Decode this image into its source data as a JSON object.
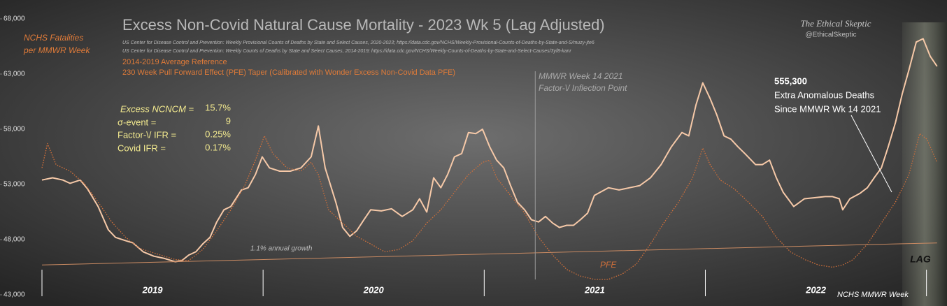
{
  "chart_data": {
    "type": "line",
    "title": "Excess Non-Covid Natural Cause Mortality - 2023 Wk 5 (Lag Adjusted)",
    "sources": [
      "US Center for Disease Control and Prevention: Weekly  Provisional Counts of Deaths by State and Select Causes, 2020-2023; https://data.cdc.gov/NCHS/Weekly-Provisional-Counts-of-Deaths-by-State-and-S/muzy-jte6",
      "US Center for Disease Control and Prevention: Weekly  Counts of Deaths by State and Select Causes, 2014-2019; https://data.cdc.gov/NCHS/Weekly-Counts-of-Deaths-by-State-and-Select-Causes/3yf8-kanr"
    ],
    "brand": "The Ethical Skeptic",
    "handle": "@EthicalSkeptic",
    "y_label": [
      "NCHS Fatalities",
      "per MMWR Week"
    ],
    "x_label": "NCHS MMWR Week",
    "ylim": [
      43000,
      68000
    ],
    "yticks": [
      {
        "value": 43000,
        "label": "43,000"
      },
      {
        "value": 48000,
        "label": "48,000"
      },
      {
        "value": 53000,
        "label": "53,000"
      },
      {
        "value": 58000,
        "label": "58,000"
      },
      {
        "value": 63000,
        "label": "63,000"
      },
      {
        "value": 68000,
        "label": "68,000"
      }
    ],
    "xlim": [
      0,
      212
    ],
    "xticks": [
      {
        "value": 26,
        "label": "2019"
      },
      {
        "value": 78,
        "label": "2020"
      },
      {
        "value": 130,
        "label": "2021"
      },
      {
        "value": 182,
        "label": "2022"
      }
    ],
    "stats": [
      {
        "label": "Excess NCNCM =",
        "value": "15.7%"
      },
      {
        "label": "σ-event =",
        "value": "9"
      },
      {
        "label": "Factor-\\/ IFR =",
        "value": "0.25%"
      },
      {
        "label": "Covid IFR =",
        "value": "0.17%"
      }
    ],
    "inflection": {
      "x": 116,
      "label": [
        "MMWR Week 14 2021",
        "Factor-\\/ Inflection Point"
      ]
    },
    "excess_note": {
      "value": "555,300",
      "lines": [
        "Extra Anomalous Deaths",
        "Since MMWR Wk 14 2021"
      ]
    },
    "lag_label": "LAG",
    "pfe_label": "PFE",
    "growth_label": "1.1% annual growth",
    "series": [
      {
        "color": "#f6c9a8",
        "dash": false,
        "x": [
          0,
          2.5,
          4.9,
          6.6,
          9.0,
          10.7,
          13.2,
          15.6,
          17.3,
          19.7,
          21.4,
          23.8,
          26.3,
          28.8,
          31.3,
          32.9,
          34.5,
          36.2,
          37.8,
          39.5,
          41.1,
          42.8,
          44.4,
          46.9,
          48.5,
          50.2,
          51.8,
          53.5,
          55.9,
          58.4,
          60.9,
          63.3,
          65.0,
          66.6,
          69.1,
          70.7,
          72.4,
          74.0,
          75.7,
          77.3,
          79.8,
          82.2,
          84.7,
          87.2,
          88.8,
          90.5,
          92.1,
          93.8,
          95.4,
          97.0,
          98.7,
          100.3,
          102.0,
          103.6,
          105.3,
          106.9,
          108.6,
          110.2,
          111.8,
          113.5,
          115.1,
          116.8,
          118.4,
          120.1,
          121.7,
          123.4,
          125.0,
          126.6,
          128.3,
          129.9,
          133.2,
          135.7,
          138.2,
          140.6,
          143.1,
          145.6,
          148.0,
          150.5,
          152.1,
          153.8,
          155.4,
          157.1,
          158.7,
          160.4,
          162.0,
          163.7,
          165.3,
          167.8,
          169.4,
          171.1,
          172.7,
          174.3,
          176.8,
          179.3,
          181.7,
          184.2,
          185.9,
          187.5,
          188.3,
          190.0,
          192.4,
          194.1,
          195.7,
          197.4,
          199.0,
          200.7,
          202.3,
          203.9,
          205.6,
          207.2,
          208.9,
          210.5
        ],
        "values": [
          53400,
          53600,
          53400,
          53100,
          53400,
          52600,
          51000,
          48900,
          48200,
          47900,
          47700,
          46900,
          46500,
          46300,
          46000,
          46100,
          46600,
          46900,
          47600,
          48200,
          49600,
          50700,
          51000,
          52500,
          52700,
          53900,
          55500,
          54500,
          54200,
          54200,
          54500,
          55500,
          58300,
          54500,
          51400,
          49100,
          48300,
          48800,
          49800,
          50700,
          50600,
          50800,
          50100,
          50700,
          51700,
          50500,
          53600,
          52700,
          53900,
          55500,
          55800,
          57700,
          57600,
          58000,
          56400,
          55200,
          54500,
          52900,
          51400,
          50700,
          49800,
          49600,
          50100,
          49500,
          49100,
          49300,
          49300,
          49800,
          50400,
          52000,
          52700,
          52500,
          52700,
          52900,
          53600,
          54800,
          56400,
          57700,
          57400,
          60200,
          62200,
          60800,
          59300,
          57400,
          57100,
          56400,
          55800,
          54800,
          54800,
          55200,
          53600,
          52300,
          51000,
          51700,
          51800,
          51900,
          51900,
          51700,
          50700,
          51700,
          52200,
          52700,
          53600,
          54500,
          56400,
          58600,
          61200,
          63400,
          65900,
          66200,
          64600,
          63700
        ]
      },
      {
        "name": "230 Week Pull Forward Effect (PFE) Taper (Calibrated with Wonder Excess Non-Covid Data PFE)",
        "color": "#d2703a",
        "dash": true,
        "x": [
          0,
          1.3,
          3.3,
          6.6,
          9.9,
          13.2,
          16.4,
          19.7,
          23.0,
          26.3,
          31.3,
          34.5,
          37.8,
          41.1,
          44.4,
          47.7,
          50.2,
          52.3,
          54.3,
          57.6,
          60.9,
          63.3,
          65.0,
          67.4,
          70.7,
          74.0,
          77.3,
          80.6,
          83.9,
          87.2,
          90.5,
          93.8,
          97.0,
          100.3,
          103.6,
          105.3,
          106.9,
          110.2,
          113.5,
          116.8,
          120.1,
          123.4,
          126.6,
          129.9,
          133.2,
          136.5,
          139.8,
          143.1,
          146.4,
          149.7,
          153.0,
          155.4,
          157.1,
          159.5,
          162.8,
          166.1,
          169.4,
          172.7,
          176.0,
          179.3,
          182.6,
          185.9,
          188.3,
          190.8,
          194.1,
          197.4,
          200.7,
          203.9,
          206.4,
          208.1,
          210.5
        ],
        "values": [
          54500,
          56700,
          54800,
          54200,
          53100,
          51400,
          49600,
          48200,
          47200,
          46800,
          46200,
          46100,
          47100,
          48800,
          50700,
          52900,
          55200,
          57400,
          55800,
          54500,
          54200,
          55000,
          53900,
          50700,
          49500,
          48300,
          47600,
          46900,
          47100,
          47900,
          49500,
          50700,
          52300,
          53900,
          55000,
          55200,
          53600,
          52000,
          50400,
          48200,
          46600,
          45300,
          44700,
          44400,
          44400,
          44900,
          45800,
          47600,
          49600,
          51400,
          53600,
          56300,
          54800,
          53400,
          52600,
          51400,
          50100,
          48200,
          46900,
          46200,
          45700,
          45500,
          45700,
          46200,
          47600,
          49500,
          51400,
          53900,
          57600,
          57100,
          55000
        ]
      },
      {
        "name": "2014-2019 Average Reference",
        "color": "#c98a62",
        "dash": false,
        "thin": true,
        "x": [
          0,
          210.5
        ],
        "values": [
          45700,
          47700
        ]
      }
    ]
  }
}
